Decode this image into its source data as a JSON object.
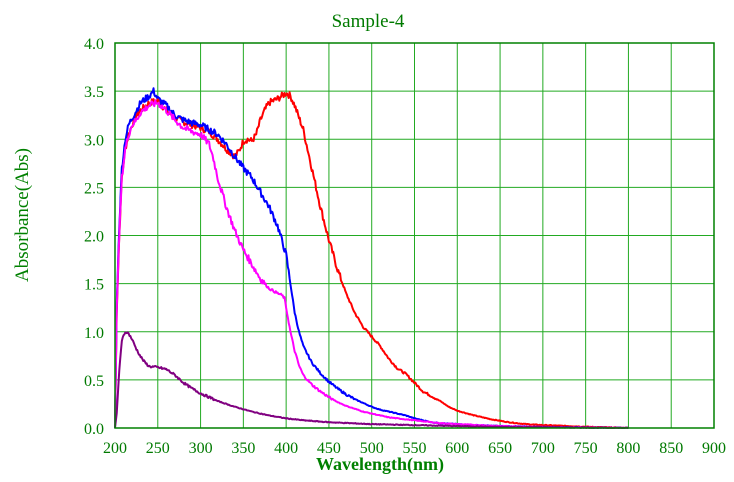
{
  "chart_data": {
    "type": "line",
    "title": "Sample-4",
    "xlabel": "Wavelength(nm)",
    "ylabel": "Absorbance(Abs)",
    "xlim": [
      200,
      900
    ],
    "ylim": [
      0.0,
      4.0
    ],
    "xticks": [
      200,
      250,
      300,
      350,
      400,
      450,
      500,
      550,
      600,
      650,
      700,
      750,
      800,
      850,
      900
    ],
    "yticks": [
      "0.0",
      "0.5",
      "1.0",
      "1.5",
      "2.0",
      "2.5",
      "3.0",
      "3.5",
      "4.0"
    ],
    "grid": true,
    "legend": "none",
    "colors": {
      "title": "#007a00",
      "axis_text": "#008000",
      "grid": "#22aa22",
      "frame": "#008000",
      "tick_text": "#007a00"
    },
    "series": [
      {
        "color": "#ff0000",
        "x": [
          200,
          202,
          205,
          208,
          212,
          216,
          220,
          225,
          230,
          240,
          250,
          260,
          270,
          280,
          290,
          300,
          310,
          320,
          330,
          340,
          345,
          350,
          355,
          360,
          365,
          370,
          375,
          380,
          390,
          395,
          400,
          405,
          410,
          420,
          430,
          440,
          450,
          460,
          470,
          480,
          490,
          500,
          510,
          520,
          530,
          540,
          550,
          560,
          570,
          580,
          590,
          600,
          620,
          640,
          660,
          680,
          700,
          730,
          760,
          800
        ],
        "y": [
          0.0,
          1.2,
          2.0,
          2.6,
          2.9,
          3.05,
          3.15,
          3.25,
          3.3,
          3.38,
          3.4,
          3.3,
          3.22,
          3.18,
          3.15,
          3.12,
          3.08,
          3.0,
          2.9,
          2.82,
          2.88,
          2.98,
          3.0,
          2.98,
          3.05,
          3.2,
          3.3,
          3.38,
          3.42,
          3.45,
          3.48,
          3.45,
          3.35,
          3.1,
          2.7,
          2.3,
          1.95,
          1.65,
          1.4,
          1.2,
          1.05,
          0.95,
          0.85,
          0.72,
          0.62,
          0.56,
          0.47,
          0.38,
          0.33,
          0.28,
          0.22,
          0.18,
          0.13,
          0.09,
          0.06,
          0.04,
          0.03,
          0.02,
          0.01,
          0.0
        ]
      },
      {
        "color": "#0000ff",
        "x": [
          200,
          202,
          205,
          208,
          212,
          216,
          220,
          225,
          230,
          240,
          245,
          250,
          260,
          270,
          280,
          290,
          300,
          310,
          320,
          330,
          340,
          350,
          360,
          370,
          380,
          390,
          400,
          405,
          410,
          415,
          420,
          430,
          440,
          450,
          460,
          470,
          480,
          490,
          500,
          510,
          520,
          530,
          540,
          550,
          560,
          570,
          580,
          600,
          620,
          650,
          700,
          800
        ],
        "y": [
          0.0,
          1.3,
          2.1,
          2.7,
          3.0,
          3.15,
          3.22,
          3.3,
          3.38,
          3.45,
          3.5,
          3.42,
          3.35,
          3.25,
          3.2,
          3.17,
          3.15,
          3.1,
          3.05,
          2.95,
          2.82,
          2.7,
          2.6,
          2.45,
          2.3,
          2.1,
          1.8,
          1.5,
          1.2,
          1.0,
          0.85,
          0.68,
          0.57,
          0.48,
          0.41,
          0.35,
          0.3,
          0.26,
          0.22,
          0.19,
          0.17,
          0.15,
          0.13,
          0.1,
          0.08,
          0.06,
          0.05,
          0.04,
          0.03,
          0.02,
          0.01,
          0.0
        ]
      },
      {
        "color": "#ff00ff",
        "x": [
          200,
          202,
          205,
          208,
          212,
          216,
          220,
          225,
          230,
          240,
          250,
          260,
          270,
          280,
          290,
          300,
          305,
          310,
          315,
          320,
          330,
          340,
          350,
          360,
          370,
          380,
          390,
          395,
          398,
          400,
          405,
          410,
          415,
          420,
          430,
          440,
          450,
          460,
          470,
          480,
          490,
          500,
          510,
          520,
          530,
          540,
          550,
          560,
          580,
          600,
          650,
          700,
          800
        ],
        "y": [
          0.0,
          1.25,
          2.0,
          2.6,
          2.9,
          3.05,
          3.15,
          3.2,
          3.28,
          3.35,
          3.38,
          3.3,
          3.2,
          3.12,
          3.08,
          3.05,
          3.0,
          2.95,
          2.8,
          2.6,
          2.3,
          2.05,
          1.85,
          1.7,
          1.55,
          1.45,
          1.4,
          1.38,
          1.35,
          1.25,
          1.0,
          0.8,
          0.65,
          0.55,
          0.45,
          0.38,
          0.32,
          0.27,
          0.23,
          0.2,
          0.17,
          0.15,
          0.13,
          0.11,
          0.1,
          0.09,
          0.08,
          0.07,
          0.05,
          0.04,
          0.02,
          0.01,
          0.0
        ]
      },
      {
        "color": "#800080",
        "x": [
          200,
          202,
          205,
          208,
          210,
          213,
          216,
          220,
          225,
          230,
          235,
          240,
          250,
          260,
          270,
          280,
          290,
          300,
          320,
          340,
          360,
          380,
          400,
          420,
          450,
          500,
          550,
          600,
          650,
          700,
          750,
          800
        ],
        "y": [
          0.0,
          0.15,
          0.6,
          0.9,
          0.97,
          1.0,
          0.98,
          0.92,
          0.82,
          0.74,
          0.68,
          0.64,
          0.63,
          0.61,
          0.55,
          0.47,
          0.41,
          0.36,
          0.28,
          0.22,
          0.17,
          0.13,
          0.1,
          0.08,
          0.06,
          0.04,
          0.03,
          0.02,
          0.01,
          0.01,
          0.005,
          0.0
        ]
      }
    ]
  }
}
